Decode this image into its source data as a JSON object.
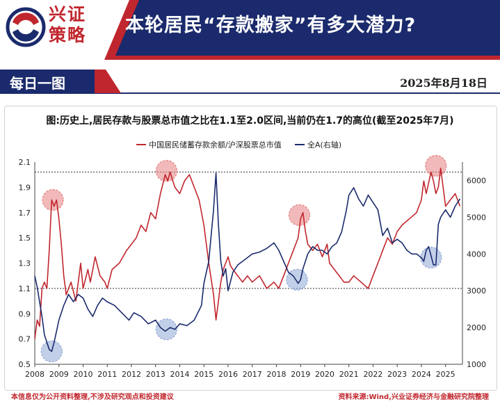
{
  "header": {
    "logo_line1": "兴证",
    "logo_line2": "策略",
    "title": "本轮居民“存款搬家”有多大潜力?",
    "brand_red": "#c0262d",
    "brand_navy": "#1a2a6c"
  },
  "subheader": {
    "tag": "每日一图",
    "date": "2025年8月18日"
  },
  "figure_title": "图:历史上,居民存款与股票总市值之比在1.1至2.0区间,当前仍在1.7的高位(截至2025年7月)",
  "footer": {
    "left": "本信息仅为公开资料整理,不涉及研究观点和投资建议",
    "right": "资料来源:Wind,兴业证券经济与金融研究院整理"
  },
  "chart_data": {
    "type": "line",
    "legend": [
      "中国居民储蓄存款余额/沪深股票总市值",
      "全A(右轴)"
    ],
    "legend_placement": "top-center",
    "x_ticks": [
      "2008",
      "2009",
      "2010",
      "2011",
      "2012",
      "2013",
      "2014",
      "2015",
      "2016",
      "2017",
      "2018",
      "2019",
      "2020",
      "2021",
      "2022",
      "2023",
      "2024",
      "2025"
    ],
    "xlim": [
      2008.0,
      2025.7
    ],
    "y_left": {
      "ticks": [
        "0.5",
        "0.7",
        "0.9",
        "1.1",
        "1.3",
        "1.5",
        "1.7",
        "1.9",
        "2.1"
      ],
      "ylim": [
        0.5,
        2.1
      ]
    },
    "y_right": {
      "ticks": [
        "1000",
        "2000",
        "3000",
        "4000",
        "5000",
        "6000"
      ],
      "ylim": [
        1000,
        6500
      ]
    },
    "reference_lines_left": [
      2.02,
      1.1
    ],
    "series": [
      {
        "name": "中国居民储蓄存款余额/沪深股票总市值",
        "axis": "left",
        "color": "#c0262d",
        "x": [
          2008.0,
          2008.1,
          2008.2,
          2008.3,
          2008.4,
          2008.5,
          2008.6,
          2008.7,
          2008.8,
          2008.9,
          2009.0,
          2009.1,
          2009.2,
          2009.3,
          2009.5,
          2009.7,
          2009.9,
          2010.0,
          2010.2,
          2010.3,
          2010.5,
          2010.7,
          2010.9,
          2011.0,
          2011.2,
          2011.5,
          2011.8,
          2012.0,
          2012.2,
          2012.4,
          2012.6,
          2012.8,
          2013.0,
          2013.2,
          2013.4,
          2013.5,
          2013.6,
          2013.8,
          2014.0,
          2014.2,
          2014.4,
          2014.6,
          2014.8,
          2015.0,
          2015.2,
          2015.4,
          2015.5,
          2015.6,
          2015.7,
          2015.8,
          2015.9,
          2016.0,
          2016.1,
          2016.2,
          2016.4,
          2016.6,
          2016.8,
          2017.0,
          2017.3,
          2017.6,
          2017.9,
          2018.1,
          2018.3,
          2018.5,
          2018.7,
          2018.9,
          2019.0,
          2019.1,
          2019.2,
          2019.3,
          2019.5,
          2019.7,
          2019.9,
          2020.0,
          2020.1,
          2020.2,
          2020.4,
          2020.6,
          2020.8,
          2021.0,
          2021.2,
          2021.5,
          2021.8,
          2022.0,
          2022.2,
          2022.4,
          2022.6,
          2022.8,
          2023.0,
          2023.2,
          2023.5,
          2023.8,
          2024.0,
          2024.1,
          2024.2,
          2024.4,
          2024.5,
          2024.6,
          2024.7,
          2024.8,
          2025.0,
          2025.2,
          2025.4,
          2025.5,
          2025.6
        ],
        "values": [
          0.7,
          0.85,
          0.8,
          1.1,
          1.15,
          1.1,
          1.4,
          1.8,
          1.75,
          1.8,
          1.65,
          1.45,
          1.2,
          1.05,
          1.15,
          1.0,
          1.3,
          1.1,
          1.25,
          1.15,
          1.35,
          1.2,
          1.15,
          1.1,
          1.25,
          1.3,
          1.4,
          1.45,
          1.5,
          1.6,
          1.55,
          1.7,
          1.65,
          1.85,
          2.0,
          1.95,
          2.02,
          1.9,
          1.85,
          1.95,
          2.0,
          1.9,
          1.8,
          1.6,
          1.3,
          1.05,
          0.85,
          1.0,
          1.15,
          1.25,
          1.3,
          1.35,
          1.28,
          1.25,
          1.2,
          1.15,
          1.2,
          1.15,
          1.2,
          1.1,
          1.15,
          1.1,
          1.2,
          1.3,
          1.4,
          1.5,
          1.65,
          1.7,
          1.55,
          1.45,
          1.4,
          1.45,
          1.35,
          1.4,
          1.45,
          1.3,
          1.25,
          1.2,
          1.15,
          1.15,
          1.2,
          1.15,
          1.1,
          1.2,
          1.3,
          1.4,
          1.5,
          1.45,
          1.55,
          1.6,
          1.65,
          1.7,
          1.8,
          1.95,
          1.85,
          2.02,
          1.95,
          1.85,
          1.9,
          2.05,
          1.75,
          1.8,
          1.85,
          1.8,
          1.75
        ]
      },
      {
        "name": "全A(右轴)",
        "axis": "right",
        "color": "#1a2a6c",
        "x": [
          2008.0,
          2008.1,
          2008.2,
          2008.3,
          2008.4,
          2008.5,
          2008.6,
          2008.7,
          2008.8,
          2008.9,
          2009.0,
          2009.2,
          2009.4,
          2009.6,
          2009.8,
          2010.0,
          2010.2,
          2010.4,
          2010.6,
          2010.8,
          2011.0,
          2011.3,
          2011.6,
          2011.9,
          2012.1,
          2012.4,
          2012.7,
          2013.0,
          2013.2,
          2013.4,
          2013.6,
          2013.8,
          2014.0,
          2014.3,
          2014.6,
          2014.9,
          2015.0,
          2015.2,
          2015.3,
          2015.4,
          2015.5,
          2015.6,
          2015.7,
          2015.8,
          2015.9,
          2016.0,
          2016.2,
          2016.4,
          2016.6,
          2016.8,
          2017.0,
          2017.3,
          2017.6,
          2017.9,
          2018.1,
          2018.3,
          2018.5,
          2018.7,
          2018.9,
          2019.0,
          2019.1,
          2019.3,
          2019.5,
          2019.7,
          2019.9,
          2020.1,
          2020.3,
          2020.5,
          2020.7,
          2020.9,
          2021.0,
          2021.2,
          2021.4,
          2021.6,
          2021.8,
          2022.0,
          2022.2,
          2022.4,
          2022.6,
          2022.8,
          2023.0,
          2023.2,
          2023.4,
          2023.6,
          2023.8,
          2024.0,
          2024.1,
          2024.2,
          2024.3,
          2024.5,
          2024.6,
          2024.7,
          2024.8,
          2025.0,
          2025.2,
          2025.4,
          2025.6
        ],
        "values": [
          3400,
          3100,
          2700,
          2300,
          1800,
          1600,
          1400,
          1350,
          1600,
          1900,
          2200,
          2600,
          2900,
          2700,
          2900,
          2800,
          2500,
          2300,
          2600,
          2800,
          2700,
          2600,
          2400,
          2200,
          2400,
          2300,
          2100,
          2200,
          2000,
          1900,
          2000,
          1950,
          2100,
          2050,
          2200,
          2600,
          3200,
          3800,
          4500,
          5200,
          6200,
          4800,
          3800,
          3400,
          3600,
          3000,
          3500,
          3700,
          3800,
          3900,
          4000,
          4050,
          4150,
          4300,
          4100,
          3800,
          3500,
          3400,
          3200,
          3300,
          3600,
          4000,
          4200,
          4100,
          4100,
          4000,
          4200,
          4300,
          4600,
          5200,
          5600,
          5800,
          5500,
          5300,
          5600,
          5400,
          5200,
          4500,
          4700,
          4300,
          4400,
          4300,
          4100,
          4000,
          4000,
          3900,
          3800,
          4100,
          4200,
          3700,
          3700,
          4800,
          5000,
          5200,
          5000,
          5300,
          5500
        ]
      }
    ],
    "highlight_markers": [
      {
        "x": 2008.75,
        "axis": "left",
        "value": 1.8,
        "color": "#e58080"
      },
      {
        "x": 2013.45,
        "axis": "left",
        "value": 2.03,
        "color": "#e58080"
      },
      {
        "x": 2018.95,
        "axis": "left",
        "value": 1.68,
        "color": "#e58080"
      },
      {
        "x": 2024.6,
        "axis": "left",
        "value": 2.07,
        "color": "#e58080"
      },
      {
        "x": 2008.7,
        "axis": "right",
        "value": 1350,
        "color": "#8fa8d6"
      },
      {
        "x": 2013.45,
        "axis": "right",
        "value": 1950,
        "color": "#8fa8d6"
      },
      {
        "x": 2018.85,
        "axis": "right",
        "value": 3300,
        "color": "#8fa8d6"
      },
      {
        "x": 2024.4,
        "axis": "right",
        "value": 3900,
        "color": "#8fa8d6"
      }
    ],
    "grid": false
  }
}
